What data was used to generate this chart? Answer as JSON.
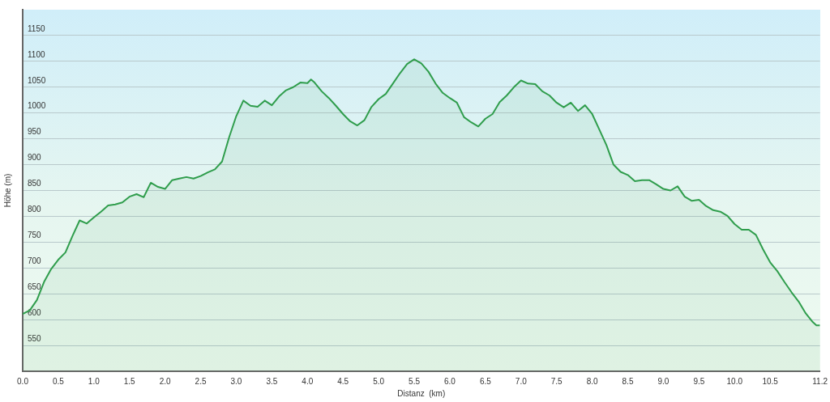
{
  "chart_data": {
    "type": "area",
    "xlabel": "Distanz  (km)",
    "ylabel": "Höhe (m)",
    "xlim": [
      0,
      11.2
    ],
    "xticks": [
      {
        "value": 0,
        "label": "0.0"
      },
      {
        "value": 0.5,
        "label": "0.5"
      },
      {
        "value": 1,
        "label": "1.0"
      },
      {
        "value": 1.5,
        "label": "1.5"
      },
      {
        "value": 2,
        "label": "2.0"
      },
      {
        "value": 2.5,
        "label": "2.5"
      },
      {
        "value": 3,
        "label": "3.0"
      },
      {
        "value": 3.5,
        "label": "3.5"
      },
      {
        "value": 4,
        "label": "4.0"
      },
      {
        "value": 4.5,
        "label": "4.5"
      },
      {
        "value": 5,
        "label": "5.0"
      },
      {
        "value": 5.5,
        "label": "5.5"
      },
      {
        "value": 6,
        "label": "6.0"
      },
      {
        "value": 6.5,
        "label": "6.5"
      },
      {
        "value": 7,
        "label": "7.0"
      },
      {
        "value": 7.5,
        "label": "7.5"
      },
      {
        "value": 8,
        "label": "8.0"
      },
      {
        "value": 8.5,
        "label": "8.5"
      },
      {
        "value": 9,
        "label": "9.0"
      },
      {
        "value": 9.5,
        "label": "9.5"
      },
      {
        "value": 10,
        "label": "10.0"
      },
      {
        "value": 10.5,
        "label": "10.5"
      },
      {
        "value": 11.2,
        "label": "11.2"
      }
    ],
    "ylim": [
      500,
      1200
    ],
    "yticks": [
      550,
      600,
      650,
      700,
      750,
      800,
      850,
      900,
      950,
      1000,
      1050,
      1100,
      1150
    ],
    "grid": "y",
    "legend": false,
    "marker": "none",
    "line_style": "solid",
    "x": [
      0,
      0.1,
      0.2,
      0.3,
      0.4,
      0.5,
      0.6,
      0.7,
      0.8,
      0.9,
      1,
      1.1,
      1.2,
      1.3,
      1.4,
      1.5,
      1.6,
      1.7,
      1.8,
      1.9,
      2,
      2.1,
      2.2,
      2.3,
      2.4,
      2.5,
      2.6,
      2.7,
      2.8,
      2.9,
      3,
      3.1,
      3.2,
      3.3,
      3.4,
      3.5,
      3.6,
      3.7,
      3.8,
      3.9,
      4,
      4.05,
      4.1,
      4.2,
      4.3,
      4.4,
      4.5,
      4.6,
      4.7,
      4.8,
      4.9,
      5,
      5.1,
      5.2,
      5.3,
      5.4,
      5.5,
      5.6,
      5.7,
      5.8,
      5.9,
      6,
      6.1,
      6.2,
      6.3,
      6.4,
      6.5,
      6.6,
      6.7,
      6.8,
      6.9,
      7,
      7.1,
      7.2,
      7.3,
      7.4,
      7.5,
      7.6,
      7.7,
      7.8,
      7.9,
      8,
      8.1,
      8.2,
      8.3,
      8.4,
      8.5,
      8.6,
      8.7,
      8.8,
      8.9,
      9,
      9.1,
      9.2,
      9.3,
      9.4,
      9.5,
      9.6,
      9.7,
      9.8,
      9.9,
      10,
      10.1,
      10.2,
      10.3,
      10.4,
      10.5,
      10.6,
      10.7,
      10.8,
      10.9,
      11,
      11.1,
      11.15,
      11.2
    ],
    "series": [
      {
        "color": "#2f9d4c",
        "values": [
          611,
          618,
          638,
          673,
          698,
          716,
          730,
          762,
          792,
          786,
          798,
          809,
          821,
          823,
          827,
          838,
          843,
          837,
          865,
          857,
          853,
          870,
          873,
          876,
          873,
          878,
          885,
          891,
          906,
          953,
          994,
          1024,
          1014,
          1012,
          1024,
          1015,
          1032,
          1044,
          1050,
          1059,
          1058,
          1065,
          1059,
          1042,
          1029,
          1014,
          998,
          984,
          976,
          986,
          1012,
          1027,
          1037,
          1057,
          1077,
          1095,
          1104,
          1096,
          1080,
          1057,
          1039,
          1029,
          1020,
          992,
          982,
          974,
          989,
          998,
          1021,
          1034,
          1050,
          1063,
          1057,
          1056,
          1042,
          1034,
          1020,
          1011,
          1020,
          1004,
          1015,
          998,
          968,
          938,
          900,
          886,
          880,
          868,
          870,
          870,
          862,
          853,
          850,
          858,
          838,
          830,
          832,
          820,
          812,
          809,
          801,
          785,
          774,
          774,
          764,
          736,
          711,
          694,
          673,
          653,
          635,
          612,
          595,
          589,
          589
        ]
      }
    ]
  }
}
